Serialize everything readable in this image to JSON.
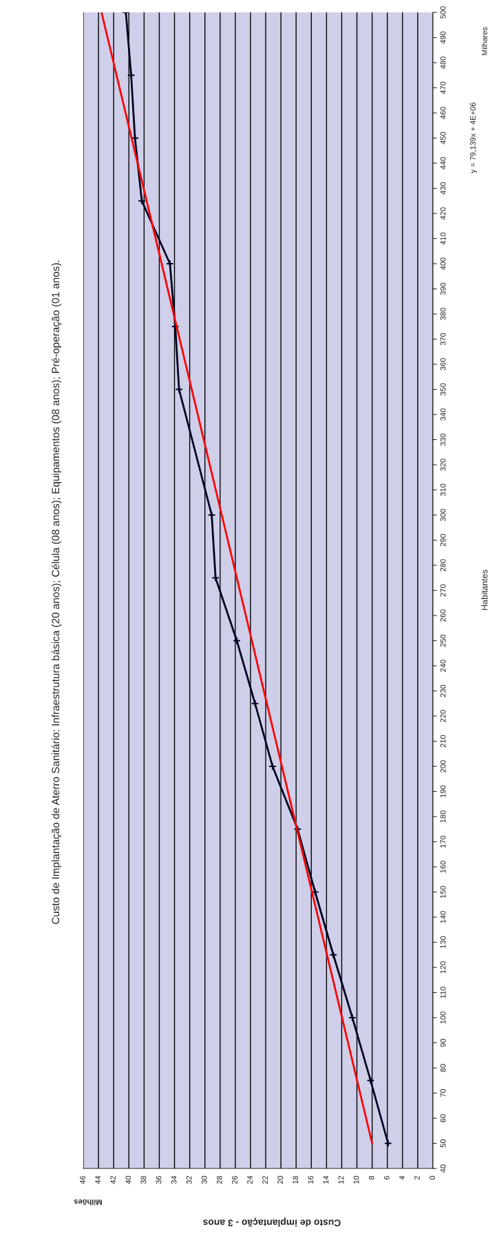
{
  "chart_data": {
    "type": "line",
    "title": "Custo de Implantação de Aterro Sanitário: Infraestrutura básica (20 anos); Célula (08 anos); Equipamentos (08 anos); Pré-operação (01 anos).",
    "xlabel": "Custo de implantação - 3 anos",
    "ylabel": "Habitantes",
    "annotations": [
      "Milhões",
      "Milhares",
      "y = 79,139x + 4E+06"
    ],
    "series": [
      {
        "color": "#000020",
        "marker": "cross",
        "x": [
          5.9,
          8.2,
          10.6,
          13.1,
          15.5,
          17.8,
          21.1,
          23.4,
          25.8,
          28.6,
          29.1,
          33.4,
          33.9,
          34.6,
          38.3,
          39.2,
          39.7,
          40.4
        ],
        "values": [
          50,
          75,
          100,
          125,
          150,
          175,
          200,
          225,
          250,
          275,
          300,
          350,
          375,
          400,
          425,
          450,
          475,
          500
        ]
      },
      {
        "color": "#ff0000",
        "x": [
          8.0,
          43.6
        ],
        "values": [
          50,
          500
        ]
      }
    ],
    "ylim": [
      40,
      500
    ],
    "yticks": [
      40,
      50,
      60,
      70,
      80,
      90,
      100,
      110,
      120,
      130,
      140,
      150,
      160,
      170,
      180,
      190,
      200,
      210,
      220,
      230,
      240,
      250,
      260,
      270,
      280,
      290,
      300,
      310,
      320,
      330,
      340,
      350,
      360,
      370,
      380,
      390,
      400,
      410,
      420,
      430,
      440,
      450,
      460,
      470,
      480,
      490,
      500
    ],
    "xlim": [
      46,
      0
    ],
    "xticks": [
      0,
      2,
      4,
      6,
      8,
      10,
      12,
      14,
      16,
      18,
      20,
      22,
      24,
      26,
      28,
      30,
      32,
      34,
      36,
      38,
      40,
      42,
      44,
      46
    ],
    "grid": "x",
    "legend": false
  }
}
